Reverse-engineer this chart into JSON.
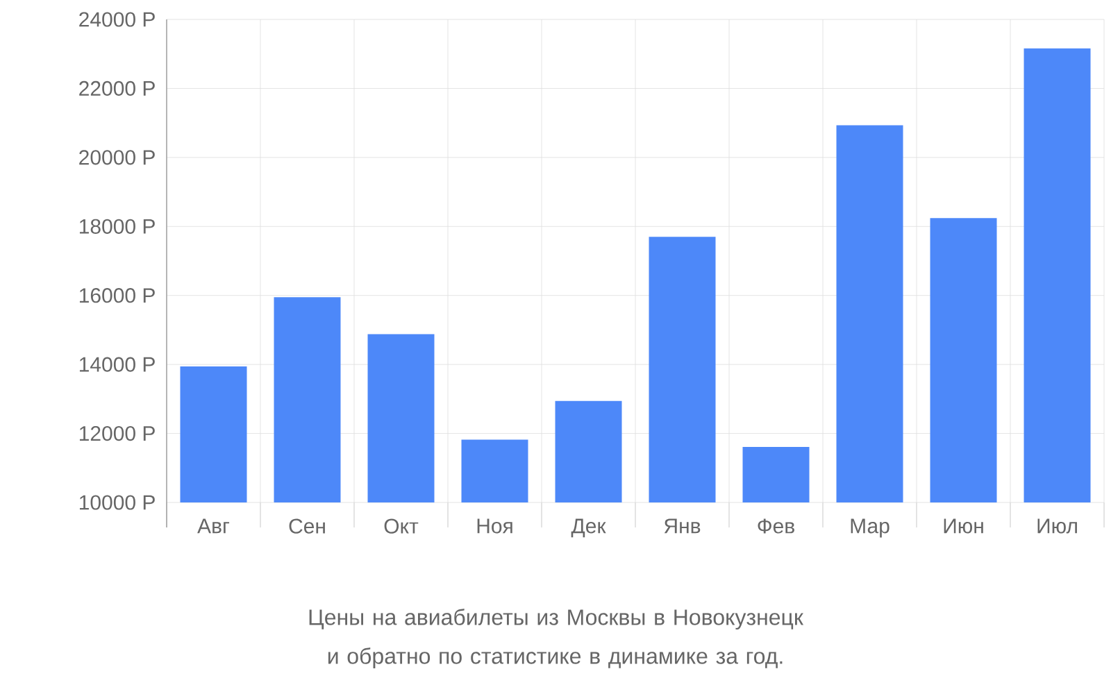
{
  "chart_data": {
    "type": "bar",
    "categories": [
      "Авг",
      "Сен",
      "Окт",
      "Ноя",
      "Дек",
      "Янв",
      "Фев",
      "Мар",
      "Июн",
      "Июл"
    ],
    "values": [
      13940,
      15950,
      14880,
      11820,
      12940,
      17700,
      11610,
      20930,
      18240,
      23160
    ],
    "color": "#4d88f9",
    "ylim": [
      10000,
      24000
    ],
    "yticks": [
      {
        "value": 10000,
        "label": "10000 Р"
      },
      {
        "value": 12000,
        "label": "12000 Р"
      },
      {
        "value": 14000,
        "label": "14000 Р"
      },
      {
        "value": 16000,
        "label": "16000 Р"
      },
      {
        "value": 18000,
        "label": "18000 Р"
      },
      {
        "value": 20000,
        "label": "20000 Р"
      },
      {
        "value": 22000,
        "label": "22000 Р"
      },
      {
        "value": 24000,
        "label": "24000 Р"
      }
    ],
    "grid": true,
    "annotations": [
      "Цены на авиабилеты из Москвы в Новокузнецк и обратно по статистике в динамике за год."
    ]
  }
}
